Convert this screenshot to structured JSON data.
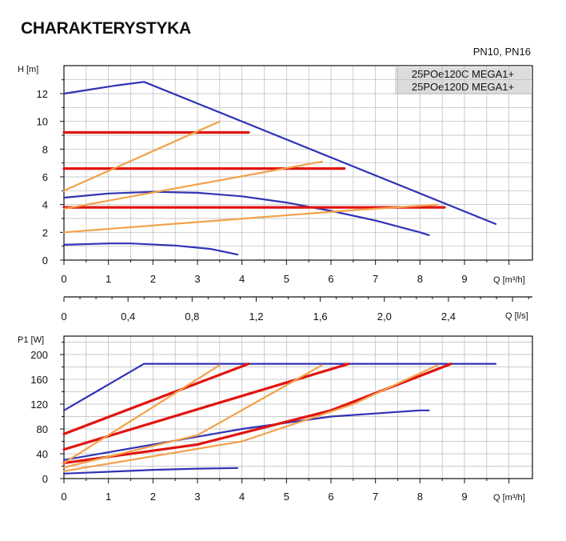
{
  "title": "CHARAKTERYSTYKA",
  "pressure_class": "PN10, PN16",
  "models": [
    "25POe120C MEGA1+",
    "25POe120D MEGA1+"
  ],
  "colors": {
    "blue": "#3033b5",
    "red": "#e0140f",
    "orange": "#f2a14a",
    "grid": "#b8b8b8"
  },
  "chart_data": [
    {
      "type": "line",
      "ylabel": "H [m]",
      "xlabel": "Q [m³/h]",
      "xlim": [
        0,
        10.3
      ],
      "ylim": [
        0,
        13
      ],
      "x_ticks": [
        "0",
        "1",
        "2",
        "3",
        "4",
        "5",
        "6",
        "7",
        "8",
        "9"
      ],
      "y_ticks": [
        "0",
        "2",
        "4",
        "6",
        "8",
        "10",
        "12"
      ],
      "grid": true,
      "series": [
        {
          "color": "blue",
          "points": [
            [
              0,
              12
            ],
            [
              1.2,
              12.6
            ],
            [
              1.8,
              12.85
            ],
            [
              9.7,
              2.6
            ]
          ]
        },
        {
          "color": "blue",
          "points": [
            [
              0,
              4.5
            ],
            [
              1,
              4.8
            ],
            [
              2,
              4.92
            ],
            [
              3,
              4.85
            ],
            [
              4,
              4.6
            ],
            [
              5,
              4.15
            ],
            [
              6,
              3.55
            ],
            [
              7,
              2.85
            ],
            [
              8,
              2.0
            ],
            [
              8.2,
              1.8
            ]
          ]
        },
        {
          "color": "blue",
          "points": [
            [
              0,
              1.1
            ],
            [
              1,
              1.2
            ],
            [
              1.5,
              1.2
            ],
            [
              2.5,
              1.05
            ],
            [
              3.3,
              0.8
            ],
            [
              3.9,
              0.4
            ]
          ]
        },
        {
          "color": "red",
          "points": [
            [
              0,
              9.2
            ],
            [
              4.15,
              9.2
            ]
          ]
        },
        {
          "color": "red",
          "points": [
            [
              0,
              6.6
            ],
            [
              6.3,
              6.6
            ]
          ]
        },
        {
          "color": "red",
          "points": [
            [
              0,
              3.8
            ],
            [
              8.55,
              3.8
            ]
          ]
        },
        {
          "color": "orange",
          "points": [
            [
              0,
              5.0
            ],
            [
              3.5,
              10.0
            ]
          ]
        },
        {
          "color": "orange",
          "points": [
            [
              0,
              3.7
            ],
            [
              5.8,
              7.1
            ]
          ]
        },
        {
          "color": "orange",
          "points": [
            [
              0,
              2.0
            ],
            [
              6.5,
              3.6
            ],
            [
              8.4,
              4.0
            ]
          ]
        }
      ]
    },
    {
      "type": "line",
      "ylabel": "P1 [W]",
      "xlabel": "Q [m³/h]",
      "xlim": [
        0,
        10.3
      ],
      "ylim": [
        0,
        210
      ],
      "x_ticks": [
        "0",
        "1",
        "2",
        "3",
        "4",
        "5",
        "6",
        "7",
        "8",
        "9"
      ],
      "y_ticks": [
        "0",
        "40",
        "80",
        "120",
        "160",
        "200"
      ],
      "secondary_axis": {
        "label": "Q [l/s]",
        "ticks": [
          "0",
          "0,4",
          "0,8",
          "1,2",
          "1,6",
          "2,0",
          "2,4"
        ],
        "values": [
          0,
          0.4,
          0.8,
          1.2,
          1.6,
          2.0,
          2.4
        ]
      },
      "grid": true,
      "series": [
        {
          "color": "blue",
          "points": [
            [
              0,
              110
            ],
            [
              1.8,
              185
            ],
            [
              9.7,
              185
            ]
          ]
        },
        {
          "color": "blue",
          "points": [
            [
              0,
              30
            ],
            [
              2,
              55
            ],
            [
              4,
              80
            ],
            [
              6,
              100
            ],
            [
              8,
              110
            ],
            [
              8.2,
              110
            ]
          ]
        },
        {
          "color": "blue",
          "points": [
            [
              0,
              8
            ],
            [
              1,
              11
            ],
            [
              2,
              14
            ],
            [
              3,
              16
            ],
            [
              3.9,
              17
            ]
          ]
        },
        {
          "color": "red",
          "points": [
            [
              0,
              72
            ],
            [
              4.15,
              185
            ]
          ]
        },
        {
          "color": "red",
          "points": [
            [
              0,
              47
            ],
            [
              6.4,
              185
            ]
          ]
        },
        {
          "color": "red",
          "points": [
            [
              0,
              25
            ],
            [
              3,
              55
            ],
            [
              6,
              110
            ],
            [
              8.7,
              185
            ]
          ]
        },
        {
          "color": "orange",
          "points": [
            [
              0,
              25
            ],
            [
              3.5,
              183
            ]
          ]
        },
        {
          "color": "orange",
          "points": [
            [
              0,
              18
            ],
            [
              3,
              70
            ],
            [
              5.8,
              183
            ]
          ]
        },
        {
          "color": "orange",
          "points": [
            [
              0,
              12
            ],
            [
              4,
              60
            ],
            [
              6.5,
              120
            ],
            [
              8.4,
              183
            ]
          ]
        }
      ]
    }
  ]
}
